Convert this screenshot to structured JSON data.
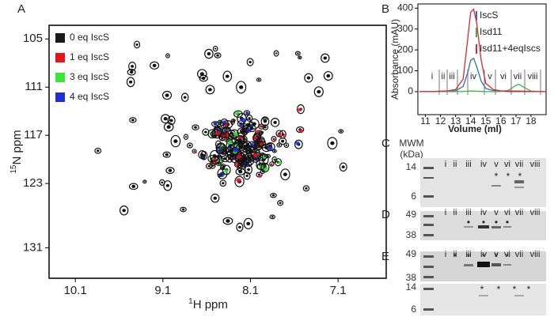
{
  "spectrum": {
    "panel_label": "A",
    "x_label": {
      "sup": "1",
      "main": "H ppm"
    },
    "y_label": {
      "sup": "15",
      "main": "N ppm"
    },
    "xlim": [
      10.4,
      6.55
    ],
    "ylim": [
      103.3,
      134.8
    ],
    "xticks": [
      10.1,
      9.1,
      8.1,
      7.1
    ],
    "yticks": [
      105,
      111,
      117,
      123,
      131
    ],
    "legend": [
      {
        "name": "0 eq IscS",
        "color": "#1a1a1a"
      },
      {
        "name": "1 eq IscS",
        "color": "#e8141c"
      },
      {
        "name": "3 eq IscS",
        "color": "#39e639"
      },
      {
        "name": "4 eq IscS",
        "color": "#1d2fd6"
      }
    ]
  },
  "chart_data": {
    "type": "line",
    "panel_label": "B",
    "x_label": "Volume (ml)",
    "y_label": "Absorbance (mAU)",
    "x": [
      10.6,
      11,
      11.5,
      12,
      12.5,
      13,
      13.5,
      13.8,
      14,
      14.2,
      14.4,
      14.7,
      15,
      15.5,
      16,
      16.5,
      17,
      17.2,
      17.5,
      18,
      18.5,
      19
    ],
    "series": [
      {
        "name": "IscS",
        "color": "#2b6fb5",
        "values": [
          0,
          0,
          0,
          2,
          3,
          4,
          25,
          90,
          150,
          160,
          120,
          50,
          15,
          5,
          2,
          0,
          0,
          0,
          0,
          0,
          0,
          0
        ]
      },
      {
        "name": "Isd11",
        "color": "#3bb54a",
        "values": [
          0,
          0,
          0,
          0,
          0,
          0,
          1,
          2,
          3,
          3,
          2,
          1,
          0,
          0,
          1,
          6,
          30,
          35,
          22,
          3,
          0,
          0
        ]
      },
      {
        "name": "Isd11+4eqIscs",
        "color": "#e3262b",
        "values": [
          0,
          0,
          0,
          2,
          4,
          10,
          60,
          250,
          380,
          395,
          330,
          150,
          40,
          10,
          4,
          3,
          3,
          3,
          2,
          1,
          0,
          0
        ]
      }
    ],
    "xlim": [
      10.5,
      19
    ],
    "ylim": [
      -110,
      420
    ],
    "xticks": [
      11,
      12,
      13,
      14,
      15,
      16,
      17,
      18
    ],
    "yticks": [
      0,
      100,
      200,
      300,
      400
    ],
    "fractions": [
      "i",
      "ii",
      "iii",
      "iv",
      "v",
      "vi",
      "vii",
      "viii"
    ]
  },
  "gels": {
    "mwm_label": [
      "MWM",
      "(kDa)"
    ],
    "panel_c": {
      "panel_label": "C",
      "lanes": [
        "i",
        "ii",
        "iii",
        "iv",
        "v",
        "vi",
        "vii",
        "viii"
      ],
      "markers": [
        "14",
        "6"
      ],
      "annotations": [
        "*",
        "*",
        "*"
      ]
    },
    "panel_d": {
      "panel_label": "D",
      "lanes": [
        "i",
        "ii",
        "iii",
        "iv",
        "v",
        "vi",
        "vii",
        "viii"
      ],
      "markers": [
        "49",
        "38"
      ],
      "annotations": [
        "•",
        "•",
        "•",
        "•"
      ]
    },
    "panel_e": {
      "panel_label": "E",
      "lanes": [
        "i",
        "ii",
        "iii",
        "iv",
        "v",
        "vi",
        "vii",
        "viii"
      ],
      "markers": [
        "49",
        "38",
        "14",
        "6"
      ],
      "annotations": [
        "*",
        "*",
        "*",
        "*",
        "*",
        "*",
        "*",
        "*",
        "*"
      ]
    }
  }
}
